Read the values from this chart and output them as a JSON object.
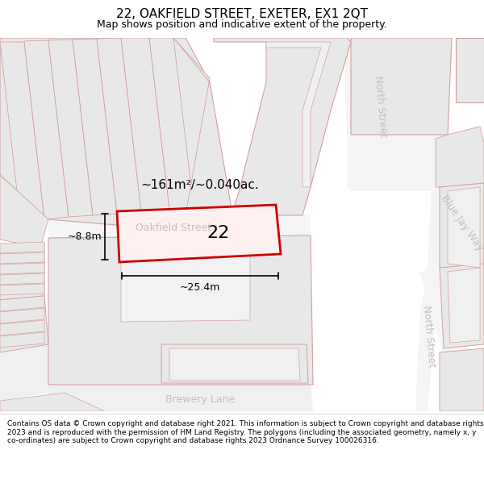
{
  "title": "22, OAKFIELD STREET, EXETER, EX1 2QT",
  "subtitle": "Map shows position and indicative extent of the property.",
  "footer": "Contains OS data © Crown copyright and database right 2021. This information is subject to Crown copyright and database rights 2023 and is reproduced with the permission of HM Land Registry. The polygons (including the associated geometry, namely x, y co-ordinates) are subject to Crown copyright and database rights 2023 Ordnance Survey 100026316.",
  "area_text": "~161m²/~0.040ac.",
  "number_text": "22",
  "dim_width": "~25.4m",
  "dim_height": "~8.8m",
  "title_fontsize": 11,
  "subtitle_fontsize": 9,
  "footer_fontsize": 6.5,
  "map_bg": "#ffffff",
  "building_fill": "#e8e8e8",
  "building_stroke": "#d4a0a0",
  "road_fill": "#f0f0f0",
  "property_fill": "#fef0f0",
  "property_stroke": "#cc0000",
  "label_color": "#c0c0c0",
  "dim_color": "#000000",
  "area_color": "#000000"
}
